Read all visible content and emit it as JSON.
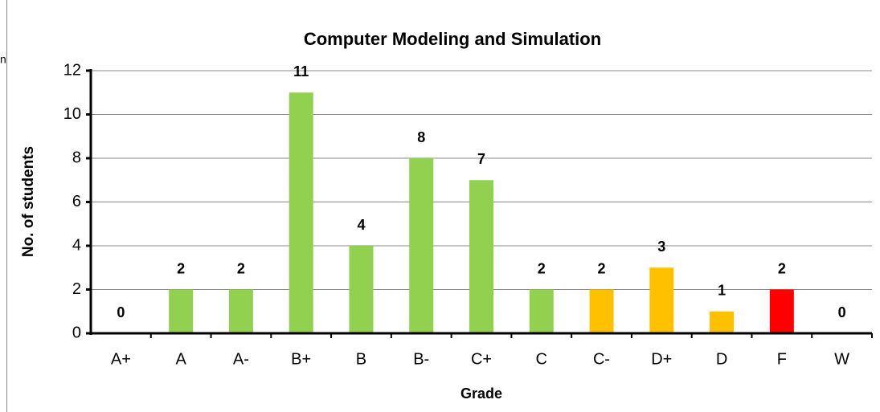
{
  "side_text": "n",
  "chart_data": {
    "type": "bar",
    "title": "Computer Modeling and Simulation",
    "xlabel": "Grade",
    "ylabel": "No. of students",
    "categories": [
      "A+",
      "A",
      "A-",
      "B+",
      "B",
      "B-",
      "C+",
      "C",
      "C-",
      "D+",
      "D",
      "F",
      "W"
    ],
    "values": [
      0,
      2,
      2,
      11,
      4,
      8,
      7,
      2,
      2,
      3,
      1,
      2,
      0
    ],
    "colors": [
      "#92d050",
      "#92d050",
      "#92d050",
      "#92d050",
      "#92d050",
      "#92d050",
      "#92d050",
      "#92d050",
      "#ffc000",
      "#ffc000",
      "#ffc000",
      "#ff0000",
      "#92d050"
    ],
    "ylim": [
      0,
      12
    ],
    "yticks": [
      0,
      2,
      4,
      6,
      8,
      10,
      12
    ],
    "grid": true
  }
}
